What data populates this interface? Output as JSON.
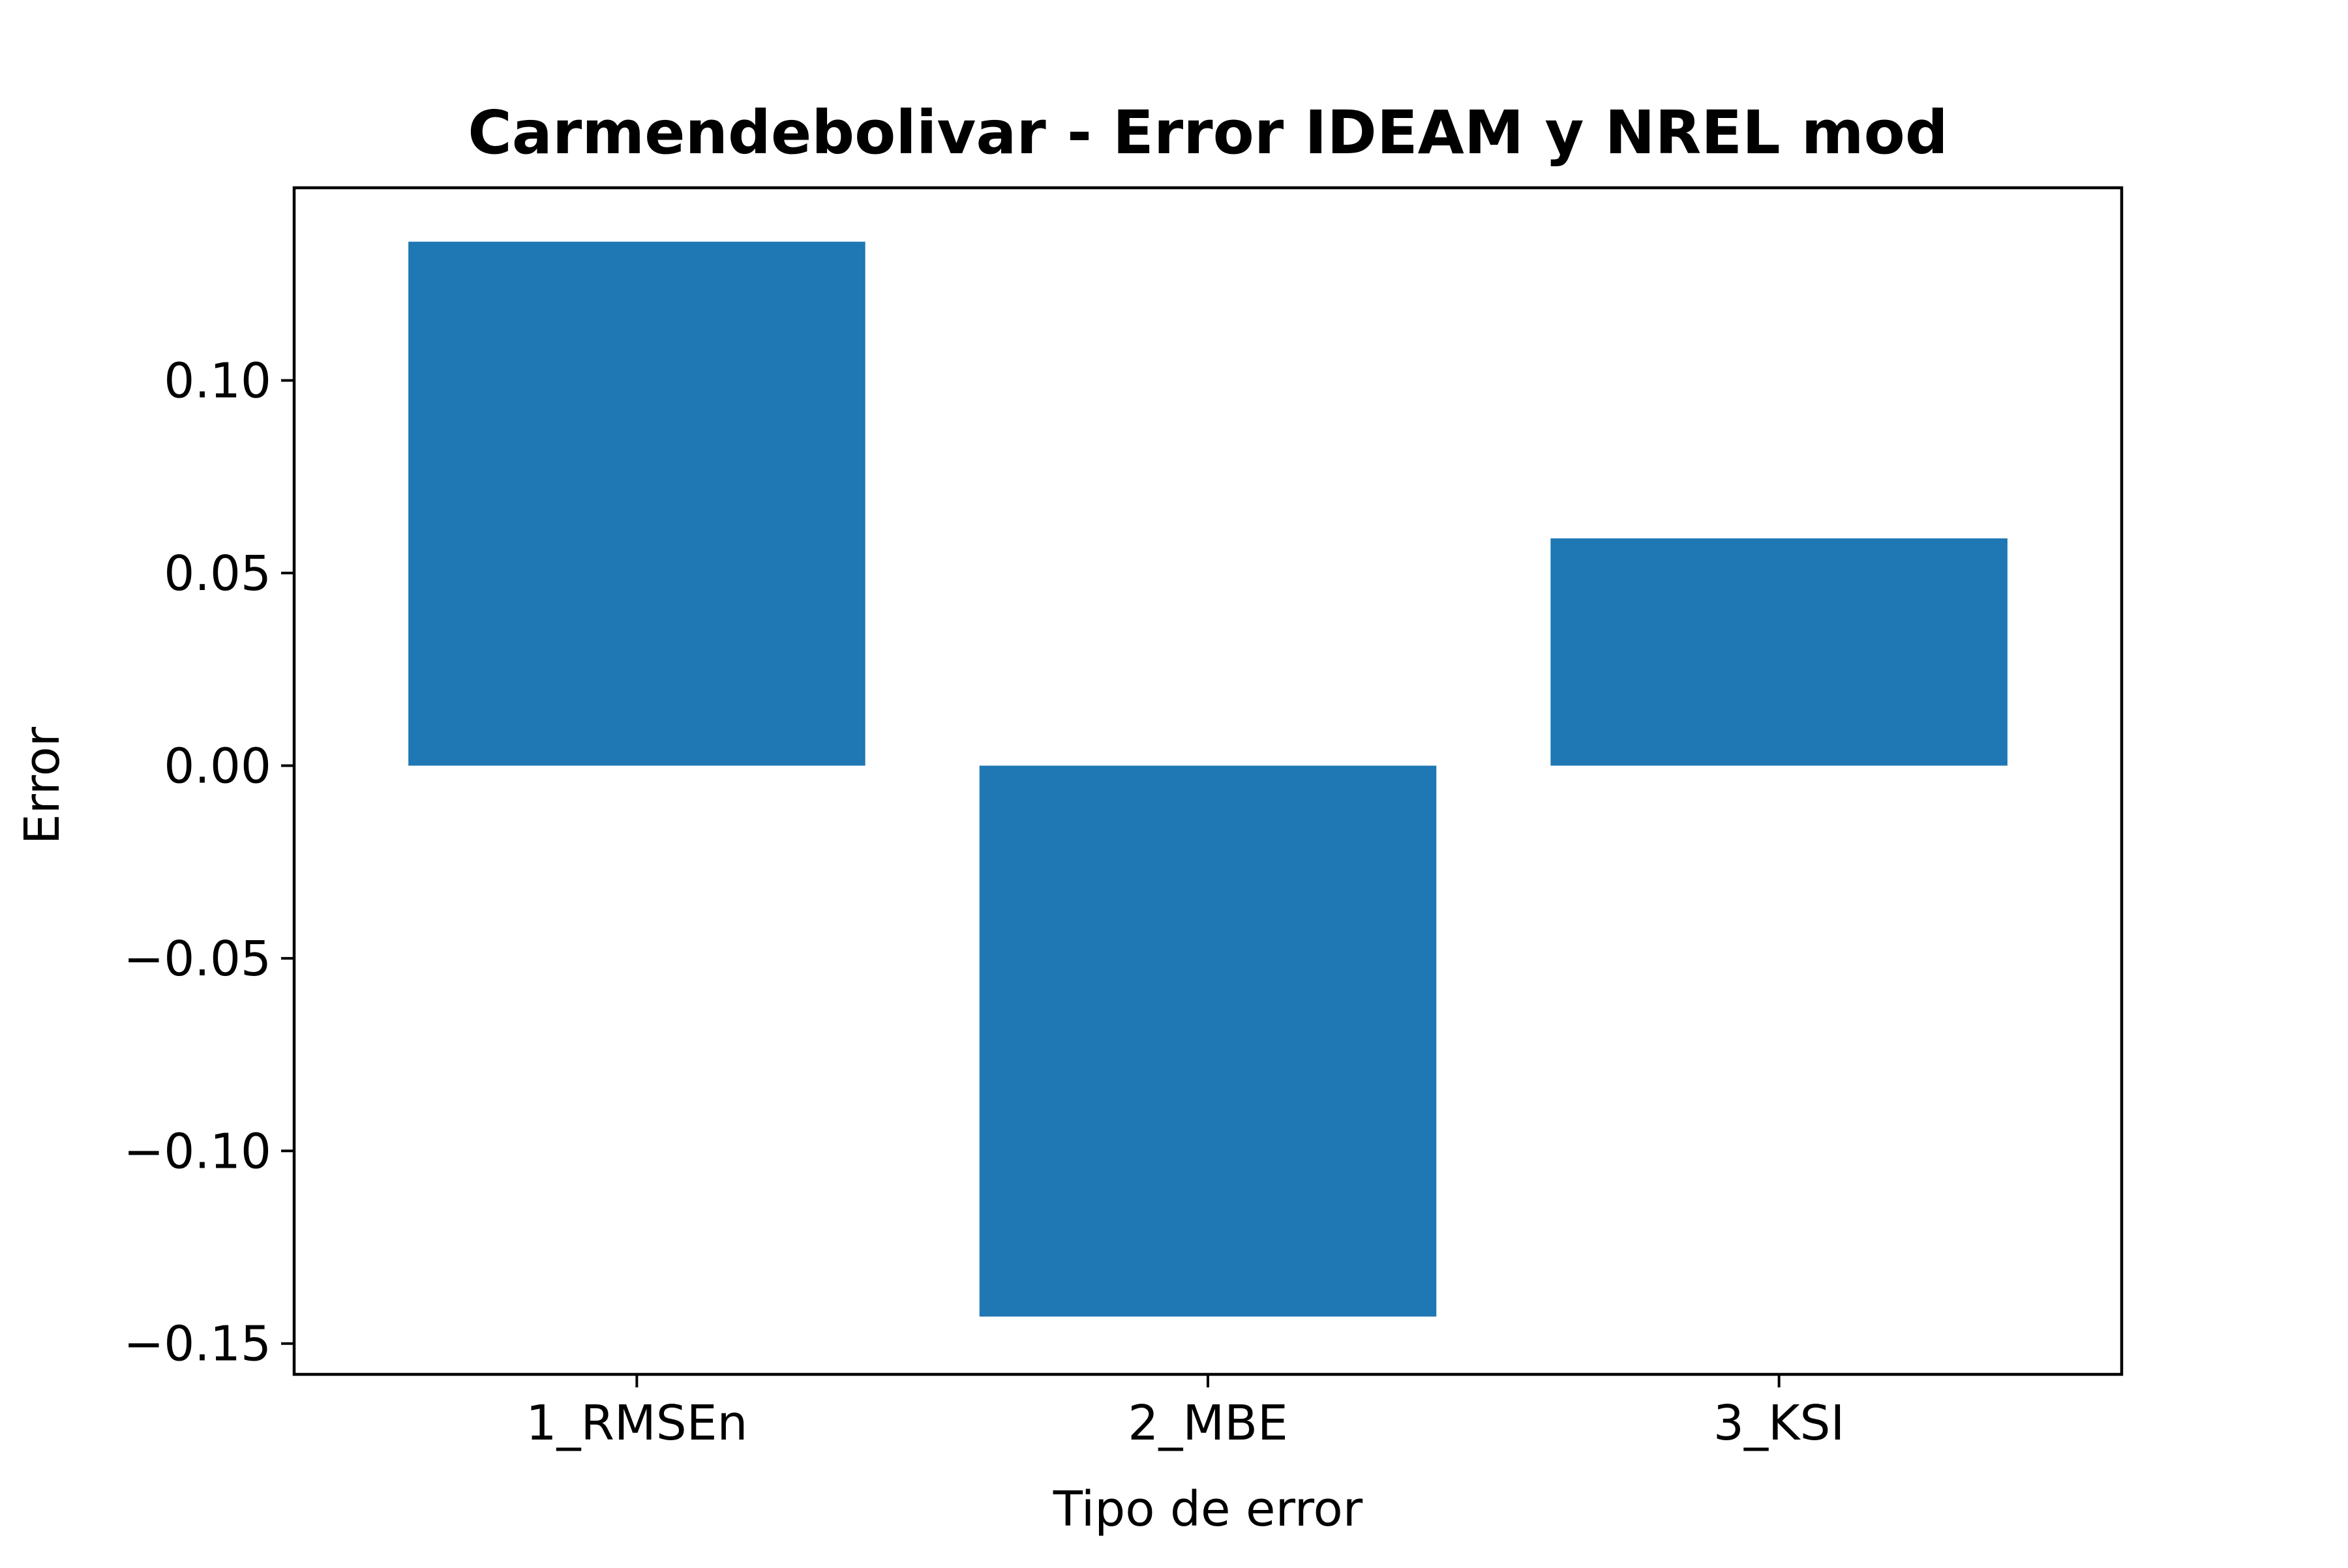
{
  "chart_data": {
    "type": "bar",
    "title": "Carmendebolivar - Error IDEAM y NREL mod",
    "xlabel": "Tipo de error",
    "ylabel": "Error",
    "categories": [
      "1_RMSEn",
      "2_MBE",
      "3_KSI"
    ],
    "values": [
      0.136,
      -0.143,
      0.059
    ],
    "ylim": [
      -0.158,
      0.15
    ],
    "yticks": [
      0.1,
      0.05,
      0.0,
      -0.05,
      -0.1,
      -0.15
    ],
    "ytick_labels": [
      "0.10",
      "0.05",
      "0.00",
      "−0.05",
      "−0.10",
      "−0.15"
    ],
    "bar_color": "#1f77b4",
    "grid": false,
    "legend": "none"
  }
}
